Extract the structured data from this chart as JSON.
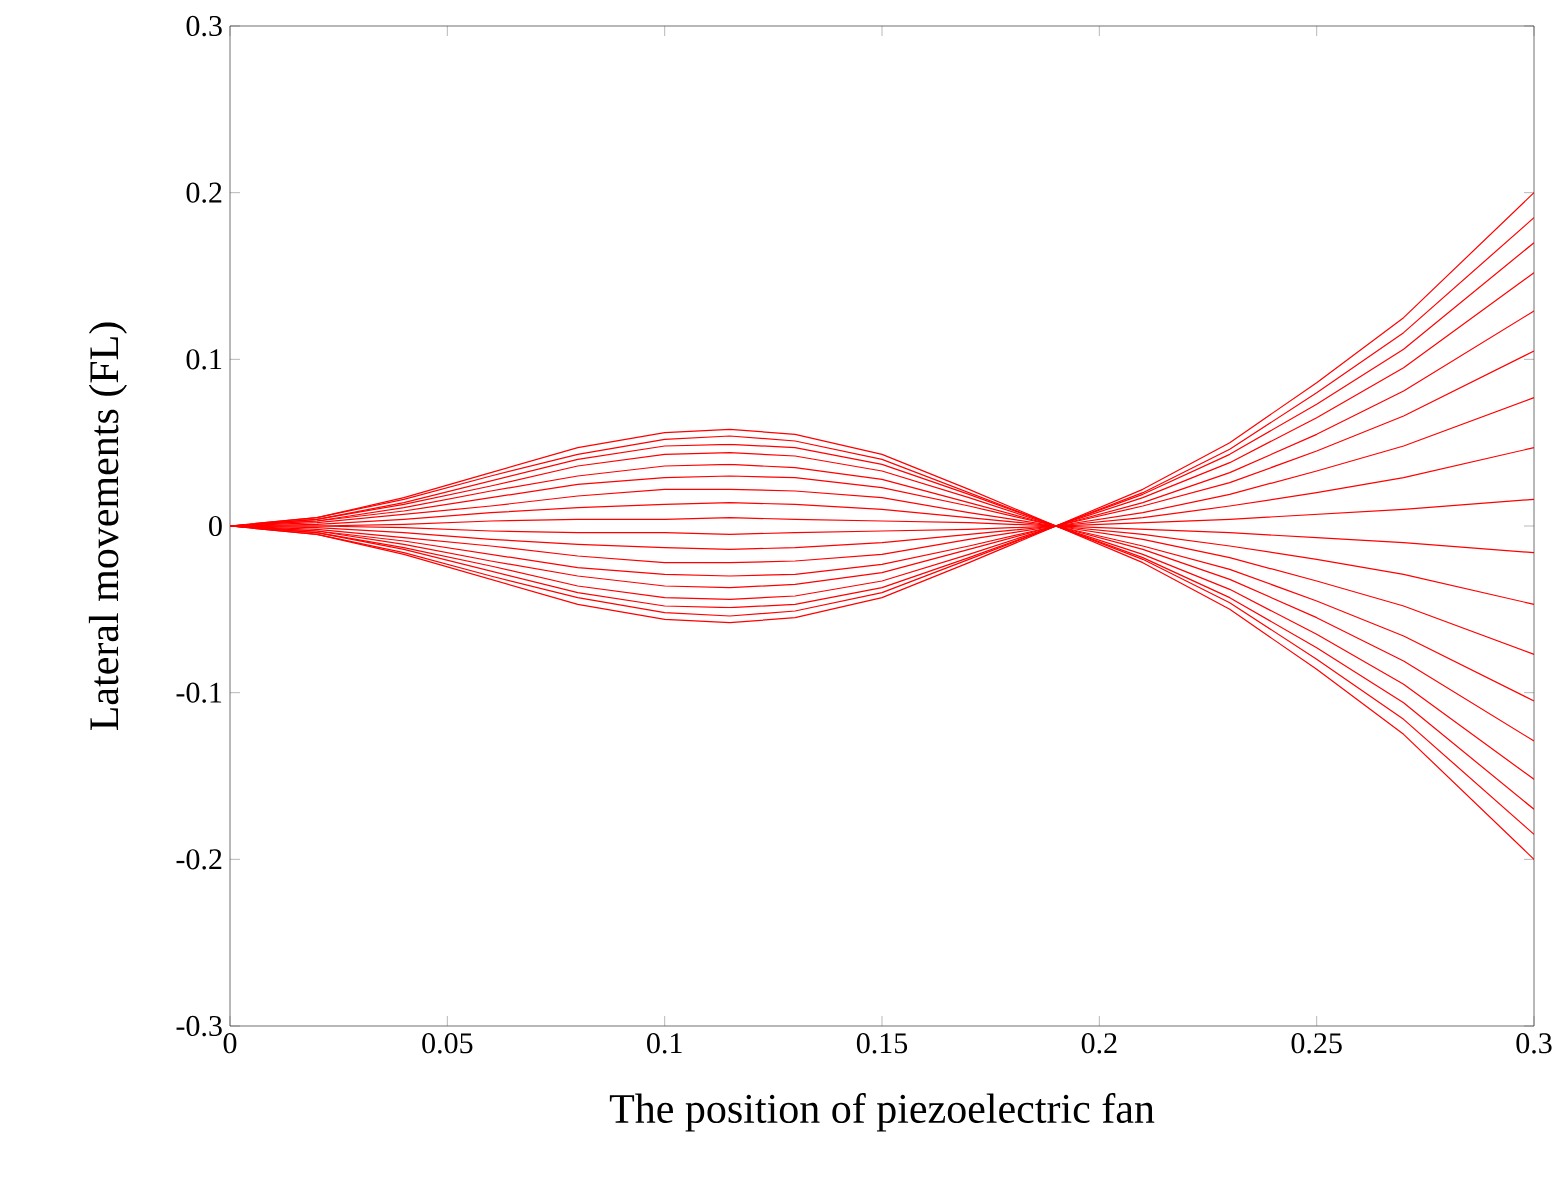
{
  "chart_data": {
    "type": "line",
    "xlabel": "The position of piezoelectric fan",
    "ylabel": "Lateral movements (FL)",
    "x": [
      0,
      0.02,
      0.04,
      0.06,
      0.08,
      0.1,
      0.115,
      0.13,
      0.15,
      0.17,
      0.19,
      0.21,
      0.23,
      0.25,
      0.27,
      0.3
    ],
    "xlim": [
      0,
      0.3
    ],
    "xticks": [
      0,
      0.05,
      0.1,
      0.15,
      0.2,
      0.25,
      0.3
    ],
    "ylim": [
      -0.3,
      0.3
    ],
    "yticks": [
      -0.3,
      -0.2,
      -0.1,
      0,
      0.1,
      0.2,
      0.3
    ],
    "grid": false,
    "legend": false,
    "marker": "none",
    "line_style": "solid",
    "series": [
      {
        "color": "#ff0000",
        "values": [
          0,
          -0.005,
          -0.017,
          -0.032,
          -0.047,
          -0.056,
          -0.058,
          -0.055,
          -0.043,
          -0.022,
          0,
          0.022,
          0.05,
          0.086,
          0.125,
          0.2
        ]
      },
      {
        "color": "#ff0000",
        "values": [
          0,
          -0.005,
          -0.016,
          -0.03,
          -0.043,
          -0.052,
          -0.054,
          -0.051,
          -0.04,
          -0.02,
          0,
          0.02,
          0.046,
          0.08,
          0.116,
          0.185
        ]
      },
      {
        "color": "#ff0000",
        "values": [
          0,
          -0.004,
          -0.014,
          -0.027,
          -0.04,
          -0.048,
          -0.049,
          -0.047,
          -0.037,
          -0.019,
          0,
          0.019,
          0.043,
          0.073,
          0.106,
          0.17
        ]
      },
      {
        "color": "#ff0000",
        "values": [
          0,
          -0.004,
          -0.013,
          -0.024,
          -0.036,
          -0.043,
          -0.044,
          -0.042,
          -0.033,
          -0.017,
          0,
          0.017,
          0.038,
          0.065,
          0.095,
          0.152
        ]
      },
      {
        "color": "#ff0000",
        "values": [
          0,
          -0.003,
          -0.011,
          -0.021,
          -0.03,
          -0.036,
          -0.037,
          -0.035,
          -0.028,
          -0.014,
          0,
          0.014,
          0.032,
          0.055,
          0.081,
          0.129
        ]
      },
      {
        "color": "#ff0000",
        "values": [
          0,
          -0.003,
          -0.009,
          -0.017,
          -0.025,
          -0.029,
          -0.03,
          -0.029,
          -0.023,
          -0.012,
          0,
          0.012,
          0.026,
          0.045,
          0.066,
          0.105
        ]
      },
      {
        "color": "#ff0000",
        "values": [
          0,
          -0.002,
          -0.007,
          -0.012,
          -0.018,
          -0.022,
          -0.022,
          -0.021,
          -0.017,
          -0.008,
          0,
          0.008,
          0.019,
          0.033,
          0.048,
          0.077
        ]
      },
      {
        "color": "#ff0000",
        "values": [
          0,
          -0.001,
          -0.004,
          -0.008,
          -0.011,
          -0.013,
          -0.014,
          -0.013,
          -0.01,
          -0.005,
          0,
          0.005,
          0.012,
          0.02,
          0.029,
          0.047
        ]
      },
      {
        "color": "#ff0000",
        "values": [
          0,
          0,
          -0.001,
          -0.003,
          -0.004,
          -0.004,
          -0.005,
          -0.004,
          -0.003,
          -0.002,
          0,
          0.002,
          0.004,
          0.007,
          0.01,
          0.016
        ]
      },
      {
        "color": "#ff0000",
        "values": [
          0,
          0,
          0.001,
          0.003,
          0.004,
          0.004,
          0.005,
          0.004,
          0.003,
          0.002,
          0,
          -0.002,
          -0.004,
          -0.007,
          -0.01,
          -0.016
        ]
      },
      {
        "color": "#ff0000",
        "values": [
          0,
          0.001,
          0.004,
          0.008,
          0.011,
          0.013,
          0.014,
          0.013,
          0.01,
          0.005,
          0,
          -0.005,
          -0.012,
          -0.02,
          -0.029,
          -0.047
        ]
      },
      {
        "color": "#ff0000",
        "values": [
          0,
          0.002,
          0.007,
          0.012,
          0.018,
          0.022,
          0.022,
          0.021,
          0.017,
          0.008,
          0,
          -0.008,
          -0.019,
          -0.033,
          -0.048,
          -0.077
        ]
      },
      {
        "color": "#ff0000",
        "values": [
          0,
          0.003,
          0.009,
          0.017,
          0.025,
          0.029,
          0.03,
          0.029,
          0.023,
          0.012,
          0,
          -0.012,
          -0.026,
          -0.045,
          -0.066,
          -0.105
        ]
      },
      {
        "color": "#ff0000",
        "values": [
          0,
          0.003,
          0.011,
          0.021,
          0.03,
          0.036,
          0.037,
          0.035,
          0.028,
          0.014,
          0,
          -0.014,
          -0.032,
          -0.055,
          -0.081,
          -0.129
        ]
      },
      {
        "color": "#ff0000",
        "values": [
          0,
          0.004,
          0.013,
          0.024,
          0.036,
          0.043,
          0.044,
          0.042,
          0.033,
          0.017,
          0,
          -0.017,
          -0.038,
          -0.065,
          -0.095,
          -0.152
        ]
      },
      {
        "color": "#ff0000",
        "values": [
          0,
          0.004,
          0.014,
          0.027,
          0.04,
          0.048,
          0.049,
          0.047,
          0.037,
          0.019,
          0,
          -0.019,
          -0.043,
          -0.073,
          -0.106,
          -0.17
        ]
      },
      {
        "color": "#ff0000",
        "values": [
          0,
          0.005,
          0.016,
          0.03,
          0.043,
          0.052,
          0.054,
          0.051,
          0.04,
          0.02,
          0,
          -0.02,
          -0.046,
          -0.08,
          -0.116,
          -0.185
        ]
      },
      {
        "color": "#ff0000",
        "values": [
          0,
          0.005,
          0.017,
          0.032,
          0.047,
          0.056,
          0.058,
          0.055,
          0.043,
          0.022,
          0,
          -0.022,
          -0.05,
          -0.086,
          -0.125,
          -0.2
        ]
      }
    ]
  }
}
